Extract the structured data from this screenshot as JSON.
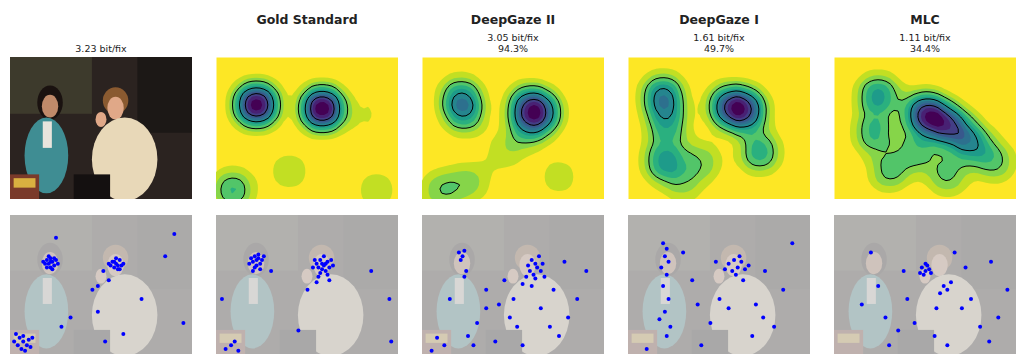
{
  "chart_data": {
    "type": "grid",
    "xlim": [
      0,
      100
    ],
    "ylim": [
      75,
      0
    ],
    "tick_labels": false,
    "columns": [
      {
        "type": "image",
        "subtitle": [
          "3.23 bit/fix"
        ],
        "color": "#0000ff",
        "fixations": [
          [
            20,
            24
          ],
          [
            21,
            26
          ],
          [
            22,
            23
          ],
          [
            23,
            25
          ],
          [
            24,
            27
          ],
          [
            22,
            28
          ],
          [
            19,
            26
          ],
          [
            25,
            24
          ],
          [
            21,
            22
          ],
          [
            23,
            29
          ],
          [
            20,
            28
          ],
          [
            24,
            23
          ],
          [
            22,
            25
          ],
          [
            26,
            26
          ],
          [
            18,
            25
          ],
          [
            56,
            25
          ],
          [
            58,
            26
          ],
          [
            60,
            24
          ],
          [
            57,
            28
          ],
          [
            59,
            29
          ],
          [
            61,
            27
          ],
          [
            55,
            27
          ],
          [
            58,
            23
          ],
          [
            62,
            26
          ],
          [
            57,
            25
          ],
          [
            60,
            29
          ],
          [
            54,
            26
          ],
          [
            59,
            27
          ],
          [
            3,
            64
          ],
          [
            5,
            66
          ],
          [
            7,
            68
          ],
          [
            9,
            70
          ],
          [
            6,
            72
          ],
          [
            4,
            70
          ],
          [
            10,
            67
          ],
          [
            8,
            73
          ],
          [
            11,
            71
          ],
          [
            2,
            68
          ],
          [
            7,
            65
          ],
          [
            12,
            66
          ],
          [
            25,
            12
          ],
          [
            45,
            40
          ],
          [
            48,
            52
          ],
          [
            33,
            55
          ],
          [
            28,
            60
          ],
          [
            52,
            68
          ],
          [
            72,
            45
          ],
          [
            85,
            22
          ],
          [
            90,
            10
          ],
          [
            62,
            64
          ],
          [
            95,
            58
          ],
          [
            48,
            38
          ],
          [
            54,
            35
          ],
          [
            51,
            30
          ]
        ]
      },
      {
        "type": "density",
        "title": "Gold Standard",
        "color": "#0000ff",
        "peaks": [
          [
            22,
            25,
            1
          ],
          [
            58,
            27,
            1
          ],
          [
            9,
            70,
            0.35
          ],
          [
            88,
            70,
            0.15
          ],
          [
            40,
            60,
            0.15
          ],
          [
            80,
            30,
            0.1
          ]
        ],
        "fixations": [
          [
            21,
            22
          ],
          [
            22,
            24
          ],
          [
            20,
            25
          ],
          [
            23,
            23
          ],
          [
            24,
            26
          ],
          [
            19,
            23
          ],
          [
            22,
            27
          ],
          [
            25,
            24
          ],
          [
            21,
            28
          ],
          [
            23,
            21
          ],
          [
            18,
            26
          ],
          [
            20,
            30
          ],
          [
            24,
            29
          ],
          [
            26,
            22
          ],
          [
            55,
            26
          ],
          [
            57,
            24
          ],
          [
            59,
            27
          ],
          [
            61,
            25
          ],
          [
            58,
            29
          ],
          [
            60,
            30
          ],
          [
            56,
            28
          ],
          [
            62,
            28
          ],
          [
            63,
            24
          ],
          [
            54,
            24
          ],
          [
            57,
            31
          ],
          [
            59,
            22
          ],
          [
            61,
            32
          ],
          [
            64,
            27
          ],
          [
            53,
            28
          ],
          [
            58,
            26
          ],
          [
            60,
            26
          ],
          [
            56,
            33
          ],
          [
            62,
            35
          ],
          [
            55,
            36
          ],
          [
            8,
            70
          ],
          [
            10,
            68
          ],
          [
            5,
            72
          ],
          [
            12,
            73
          ],
          [
            30,
            30
          ],
          [
            45,
            62
          ],
          [
            3,
            45
          ],
          [
            95,
            45
          ],
          [
            96,
            68
          ],
          [
            85,
            30
          ],
          [
            50,
            40
          ]
        ]
      },
      {
        "type": "density",
        "title": "DeepGaze II",
        "subtitle": [
          "3.05 bit/fix",
          "94.3%"
        ],
        "color": "#0000ff",
        "peaks": [
          [
            21,
            21,
            0.6
          ],
          [
            23,
            30,
            0.5
          ],
          [
            58,
            26,
            0.8
          ],
          [
            66,
            29,
            0.7
          ],
          [
            58,
            38,
            0.4
          ],
          [
            10,
            70,
            0.35
          ],
          [
            26,
            66,
            0.3
          ],
          [
            75,
            63,
            0.2
          ],
          [
            45,
            50,
            0.2
          ]
        ],
        "fixations": [
          [
            20,
            20
          ],
          [
            22,
            22
          ],
          [
            23,
            19
          ],
          [
            21,
            24
          ],
          [
            24,
            30
          ],
          [
            23,
            33
          ],
          [
            60,
            24
          ],
          [
            62,
            26
          ],
          [
            63,
            28
          ],
          [
            58,
            27
          ],
          [
            65,
            30
          ],
          [
            61,
            32
          ],
          [
            64,
            22
          ],
          [
            59,
            30
          ],
          [
            66,
            26
          ],
          [
            62,
            34
          ],
          [
            57,
            33
          ],
          [
            67,
            33
          ],
          [
            55,
            37
          ],
          [
            60,
            38
          ],
          [
            8,
            66
          ],
          [
            12,
            70
          ],
          [
            5,
            73
          ],
          [
            25,
            65
          ],
          [
            28,
            70
          ],
          [
            45,
            35
          ],
          [
            42,
            48
          ],
          [
            48,
            55
          ],
          [
            52,
            60
          ],
          [
            35,
            50
          ],
          [
            30,
            58
          ],
          [
            70,
            60
          ],
          [
            75,
            65
          ],
          [
            80,
            55
          ],
          [
            72,
            40
          ],
          [
            85,
            45
          ],
          [
            55,
            70
          ],
          [
            40,
            68
          ],
          [
            65,
            50
          ],
          [
            90,
            30
          ],
          [
            35,
            40
          ],
          [
            50,
            45
          ],
          [
            78,
            25
          ],
          [
            15,
            45
          ]
        ]
      },
      {
        "type": "density",
        "title": "DeepGaze I",
        "subtitle": [
          "1.61 bit/fix",
          "49.7%"
        ],
        "color": "#0000ff",
        "peaks": [
          [
            19,
            20,
            0.7
          ],
          [
            21,
            35,
            0.5
          ],
          [
            20,
            55,
            0.6
          ],
          [
            55,
            26,
            0.8
          ],
          [
            65,
            28,
            0.8
          ],
          [
            72,
            50,
            0.5
          ],
          [
            40,
            55,
            0.3
          ],
          [
            30,
            68,
            0.2
          ]
        ],
        "fixations": [
          [
            19,
            15
          ],
          [
            21,
            18
          ],
          [
            20,
            22
          ],
          [
            22,
            25
          ],
          [
            18,
            28
          ],
          [
            21,
            32
          ],
          [
            19,
            38
          ],
          [
            22,
            45
          ],
          [
            20,
            52
          ],
          [
            17,
            56
          ],
          [
            23,
            60
          ],
          [
            21,
            65
          ],
          [
            55,
            26
          ],
          [
            58,
            24
          ],
          [
            60,
            28
          ],
          [
            62,
            25
          ],
          [
            57,
            30
          ],
          [
            64,
            29
          ],
          [
            59,
            32
          ],
          [
            66,
            27
          ],
          [
            53,
            29
          ],
          [
            61,
            22
          ],
          [
            63,
            35
          ],
          [
            30,
            20
          ],
          [
            38,
            48
          ],
          [
            45,
            58
          ],
          [
            50,
            45
          ],
          [
            70,
            48
          ],
          [
            74,
            55
          ],
          [
            80,
            60
          ],
          [
            68,
            65
          ],
          [
            85,
            40
          ],
          [
            40,
            70
          ],
          [
            10,
            72
          ],
          [
            35,
            35
          ],
          [
            55,
            50
          ],
          [
            90,
            15
          ],
          [
            75,
            30
          ],
          [
            48,
            25
          ]
        ]
      },
      {
        "type": "density",
        "title": "MLC",
        "subtitle": [
          "1.11 bit/fix",
          "34.4%"
        ],
        "color": "#0000ff",
        "peaks": [
          [
            24,
            20,
            0.5
          ],
          [
            22,
            40,
            0.4
          ],
          [
            50,
            30,
            0.9
          ],
          [
            63,
            36,
            0.7
          ],
          [
            75,
            45,
            0.5
          ],
          [
            30,
            60,
            0.3
          ],
          [
            62,
            62,
            0.3
          ],
          [
            88,
            55,
            0.3
          ],
          [
            45,
            50,
            0.3
          ]
        ],
        "fixations": [
          [
            48,
            28
          ],
          [
            50,
            30
          ],
          [
            52,
            29
          ],
          [
            49,
            32
          ],
          [
            51,
            27
          ],
          [
            47,
            31
          ],
          [
            53,
            31
          ],
          [
            50,
            26
          ],
          [
            60,
            38
          ],
          [
            62,
            40
          ],
          [
            58,
            42
          ],
          [
            64,
            36
          ],
          [
            20,
            20
          ],
          [
            24,
            38
          ],
          [
            28,
            55
          ],
          [
            35,
            62
          ],
          [
            40,
            45
          ],
          [
            44,
            58
          ],
          [
            55,
            65
          ],
          [
            62,
            70
          ],
          [
            70,
            50
          ],
          [
            75,
            45
          ],
          [
            80,
            60
          ],
          [
            85,
            68
          ],
          [
            90,
            55
          ],
          [
            95,
            40
          ],
          [
            66,
            20
          ],
          [
            38,
            30
          ],
          [
            15,
            48
          ],
          [
            30,
            70
          ],
          [
            72,
            28
          ],
          [
            56,
            50
          ],
          [
            86,
            25
          ]
        ]
      }
    ]
  }
}
